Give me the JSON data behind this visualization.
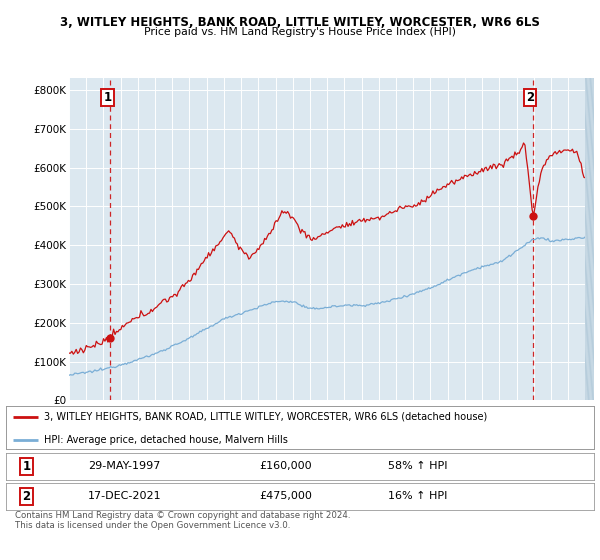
{
  "title": "3, WITLEY HEIGHTS, BANK ROAD, LITTLE WITLEY, WORCESTER, WR6 6LS",
  "subtitle": "Price paid vs. HM Land Registry's House Price Index (HPI)",
  "sale1_date": "29-MAY-1997",
  "sale1_price": 160000,
  "sale1_label": "58% ↑ HPI",
  "sale1_marker_x": 1997.38,
  "sale2_date": "17-DEC-2021",
  "sale2_price": 475000,
  "sale2_label": "16% ↑ HPI",
  "sale2_marker_x": 2021.95,
  "legend_line1": "3, WITLEY HEIGHTS, BANK ROAD, LITTLE WITLEY, WORCESTER, WR6 6LS (detached house)",
  "legend_line2": "HPI: Average price, detached house, Malvern Hills",
  "footnote1": "Contains HM Land Registry data © Crown copyright and database right 2024.",
  "footnote2": "This data is licensed under the Open Government Licence v3.0.",
  "hpi_color": "#7aaed6",
  "price_color": "#cc1111",
  "dashed_color": "#cc1111",
  "bg_plot": "#dce8f0",
  "bg_fig": "#ffffff",
  "ylim": [
    0,
    830000
  ],
  "xlim": [
    1995.0,
    2025.5
  ],
  "yticks": [
    0,
    100000,
    200000,
    300000,
    400000,
    500000,
    600000,
    700000,
    800000
  ],
  "xticks": [
    1995,
    1996,
    1997,
    1998,
    1999,
    2000,
    2001,
    2002,
    2003,
    2004,
    2005,
    2006,
    2007,
    2008,
    2009,
    2010,
    2011,
    2012,
    2013,
    2014,
    2015,
    2016,
    2017,
    2018,
    2019,
    2020,
    2021,
    2022,
    2023,
    2024,
    2025
  ]
}
